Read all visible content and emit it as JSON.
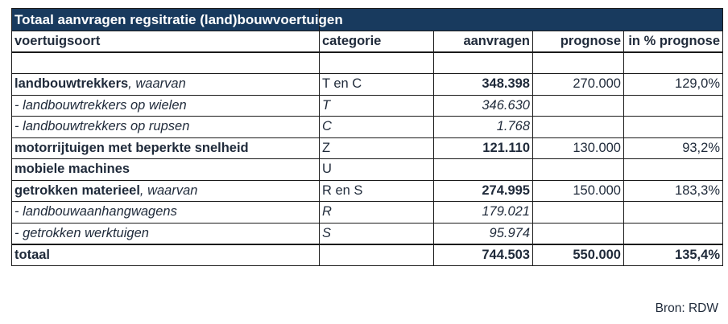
{
  "title": "Totaal aanvragen regsitratie (land)bouwvoertuigen",
  "columns": [
    "voertuigsoort",
    "categorie",
    "aanvragen",
    "prognose",
    "in % prognose"
  ],
  "rows": [
    {
      "label": "",
      "suffix": "",
      "cat": "",
      "aanvragen": "",
      "prognose": "",
      "pct": "",
      "style": "blank"
    },
    {
      "label": "landbouwtrekkers",
      "suffix": ", waarvan",
      "cat": "T en C",
      "aanvragen": "348.398",
      "prognose": "270.000",
      "pct": "129,0%",
      "style": "main"
    },
    {
      "label": "- landbouwtrekkers op wielen",
      "suffix": "",
      "cat": "T",
      "aanvragen": "346.630",
      "prognose": "",
      "pct": "",
      "style": "sub"
    },
    {
      "label": "- landbouwtrekkers op rupsen",
      "suffix": "",
      "cat": "C",
      "aanvragen": "1.768",
      "prognose": "",
      "pct": "",
      "style": "sub"
    },
    {
      "label": "motorrijtuigen met beperkte snelheid",
      "suffix": "",
      "cat": "Z",
      "aanvragen": "121.110",
      "prognose": "130.000",
      "pct": "93,2%",
      "style": "main"
    },
    {
      "label": "mobiele machines",
      "suffix": "",
      "cat": "U",
      "aanvragen": "",
      "prognose": "",
      "pct": "",
      "style": "main"
    },
    {
      "label": "getrokken materieel",
      "suffix": ", waarvan",
      "cat": "R en S",
      "aanvragen": "274.995",
      "prognose": "150.000",
      "pct": "183,3%",
      "style": "main"
    },
    {
      "label": "- landbouwaanhangwagens",
      "suffix": "",
      "cat": "R",
      "aanvragen": "179.021",
      "prognose": "",
      "pct": "",
      "style": "sub"
    },
    {
      "label": "- getrokken werktuigen",
      "suffix": "",
      "cat": "S",
      "aanvragen": "95.974",
      "prognose": "",
      "pct": "",
      "style": "sub"
    }
  ],
  "total": {
    "label": "totaal",
    "aanvragen": "744.503",
    "prognose": "550.000",
    "pct": "135,4%"
  },
  "source": "Bron: RDW",
  "colors": {
    "header_bg": "#183a5e",
    "header_text": "#ffffff",
    "border": "#1a1a1a"
  }
}
